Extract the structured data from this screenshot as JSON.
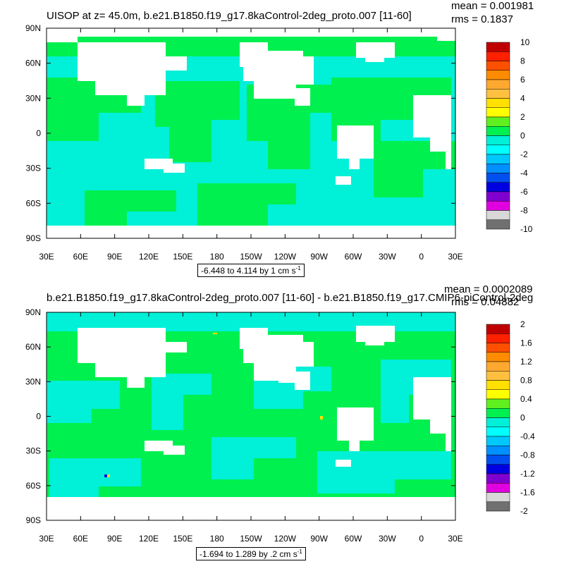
{
  "colors": {
    "land": "#ffffff",
    "pos_small": "#00f050",
    "neg_small": "#00f0d8",
    "pos_med": "#60f020",
    "neg_med": "#00e0ff"
  },
  "panels": [
    {
      "title": "UISOP at z=  45.0m, b.e21.B1850.f19_g17.8kaControl-2deg_proto.007 [11-60]",
      "mean_label": "mean = 0.001981",
      "rms_label": "rms = 0.1837",
      "range_label": "-6.448 to 4.114 by 1 cm s",
      "range_sup": "-1",
      "colorbar": {
        "labels": [
          "10",
          "8",
          "6",
          "4",
          "2",
          "0",
          "-2",
          "-4",
          "-6",
          "-8",
          "-10"
        ],
        "colors": [
          "#c00000",
          "#ff2000",
          "#ff5000",
          "#ff8c00",
          "#ffa830",
          "#ffc040",
          "#ffe000",
          "#ffff00",
          "#60f020",
          "#00f050",
          "#00f0d8",
          "#00ffff",
          "#00c8ff",
          "#0090ff",
          "#0050f0",
          "#0000e0",
          "#8000d0",
          "#e000e0",
          "#d8d8d8",
          "#707070"
        ]
      },
      "lat_labels": [
        "90N",
        "60N",
        "30N",
        "0",
        "30S",
        "60S",
        "90S"
      ],
      "lon_labels": [
        "30E",
        "60E",
        "90E",
        "120E",
        "150E",
        "180",
        "150W",
        "120W",
        "90W",
        "60W",
        "30W",
        "0",
        "30E"
      ]
    },
    {
      "title": "b.e21.B1850.f19_g17.8kaControl-2deg_proto.007 [11-60] - b.e21.B1850.f19_g17.CMIP6-piControl-2deg",
      "mean_label": "mean = 0.0002089",
      "rms_label": "rms = 0.04882",
      "range_label": "-1.694 to 1.289 by .2 cm s",
      "range_sup": "-1",
      "colorbar": {
        "labels": [
          "2",
          "1.6",
          "1.2",
          "0.8",
          "0.4",
          "0",
          "-0.4",
          "-0.8",
          "-1.2",
          "-1.6",
          "-2"
        ],
        "colors": [
          "#c00000",
          "#ff2000",
          "#ff5000",
          "#ff8c00",
          "#ffa830",
          "#ffc040",
          "#ffe000",
          "#ffff00",
          "#60f020",
          "#00f050",
          "#00f0d8",
          "#00ffff",
          "#00c8ff",
          "#0090ff",
          "#0050f0",
          "#0000e0",
          "#8000d0",
          "#e000e0",
          "#d8d8d8",
          "#707070"
        ]
      },
      "lat_labels": [
        "90N",
        "60N",
        "30N",
        "0",
        "30S",
        "60S",
        "90S"
      ],
      "lon_labels": [
        "30E",
        "60E",
        "90E",
        "120E",
        "150E",
        "180",
        "150W",
        "120W",
        "90W",
        "60W",
        "30W",
        "0",
        "30E"
      ]
    }
  ]
}
